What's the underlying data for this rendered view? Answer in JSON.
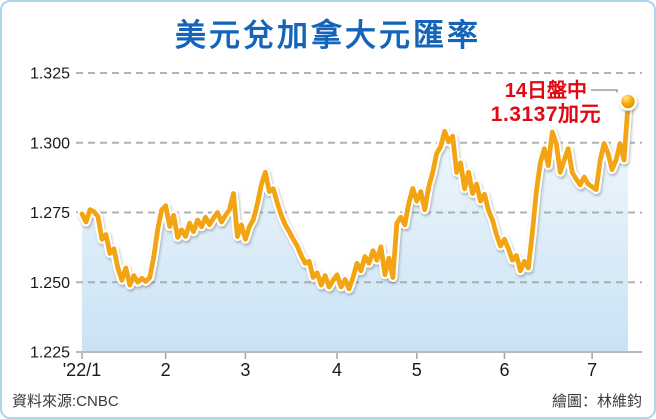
{
  "card": {
    "title": "美元兌加拿大元匯率",
    "source": "資料來源:CNBC",
    "credit": "繪圖：林維鈞"
  },
  "annotation": {
    "line1": "14日盤中",
    "line2": "1.3137加元",
    "color": "#e30613"
  },
  "chart_data": {
    "type": "area",
    "title": "美元兌加拿大元匯率",
    "ylabel": "",
    "xlabel": "",
    "ylim": [
      1.225,
      1.325
    ],
    "y_ticks": [
      1.225,
      1.25,
      1.275,
      1.3,
      1.325
    ],
    "grid": "horizontal-dashed",
    "legend": "none",
    "x_tick_labels": [
      "'22/1",
      "2",
      "3",
      "4",
      "5",
      "6",
      "7"
    ],
    "x_tick_indices": [
      0,
      21,
      41,
      64,
      84,
      106,
      128
    ],
    "latest": {
      "date_label": "14日盤中",
      "value": 1.3137,
      "unit": "加元"
    },
    "line_color": "#f2a412",
    "line_casing_color": "#ffffff",
    "area_color_top": "#f4fafd",
    "area_color_bottom": "#c9e2f4",
    "grid_color": "#a0a6ac",
    "axis_color": "#b3bac0",
    "values": [
      1.2745,
      1.2716,
      1.276,
      1.2753,
      1.2736,
      1.2654,
      1.2671,
      1.2603,
      1.262,
      1.2551,
      1.2507,
      1.2551,
      1.249,
      1.2524,
      1.25,
      1.2514,
      1.2503,
      1.2517,
      1.259,
      1.269,
      1.276,
      1.2774,
      1.27,
      1.274,
      1.2661,
      1.2688,
      1.2664,
      1.2712,
      1.2681,
      1.2723,
      1.2699,
      1.2733,
      1.2706,
      1.273,
      1.275,
      1.2716,
      1.274,
      1.276,
      1.2818,
      1.2664,
      1.2706,
      1.2654,
      1.2699,
      1.2725,
      1.278,
      1.285,
      1.2894,
      1.2825,
      1.2835,
      1.2784,
      1.274,
      1.2706,
      1.2681,
      1.2654,
      1.263,
      1.2596,
      1.2568,
      1.2575,
      1.2517,
      1.2534,
      1.249,
      1.2524,
      1.2483,
      1.2507,
      1.2527,
      1.2483,
      1.251,
      1.2476,
      1.2517,
      1.2568,
      1.2541,
      1.2592,
      1.2568,
      1.2613,
      1.2579,
      1.2627,
      1.2527,
      1.2586,
      1.2517,
      1.2712,
      1.2733,
      1.2706,
      1.2784,
      1.2836,
      1.2791,
      1.2825,
      1.276,
      1.2842,
      1.2894,
      1.2962,
      1.2986,
      1.3041,
      1.3003,
      1.3024,
      1.2894,
      1.2928,
      1.2835,
      1.2894,
      1.2818,
      1.2852,
      1.2791,
      1.2815,
      1.2757,
      1.2723,
      1.2671,
      1.263,
      1.2654,
      1.262,
      1.2579,
      1.2596,
      1.2541,
      1.2575,
      1.2551,
      1.2678,
      1.2825,
      1.2928,
      1.2979,
      1.2918,
      1.3038,
      1.2997,
      1.2894,
      1.2938,
      1.2979,
      1.2894,
      1.287,
      1.2849,
      1.2877,
      1.2852,
      1.2842,
      1.2832,
      1.2935,
      1.2997,
      1.2962,
      1.2904,
      1.2938,
      1.2997,
      1.2938,
      1.3137
    ]
  }
}
